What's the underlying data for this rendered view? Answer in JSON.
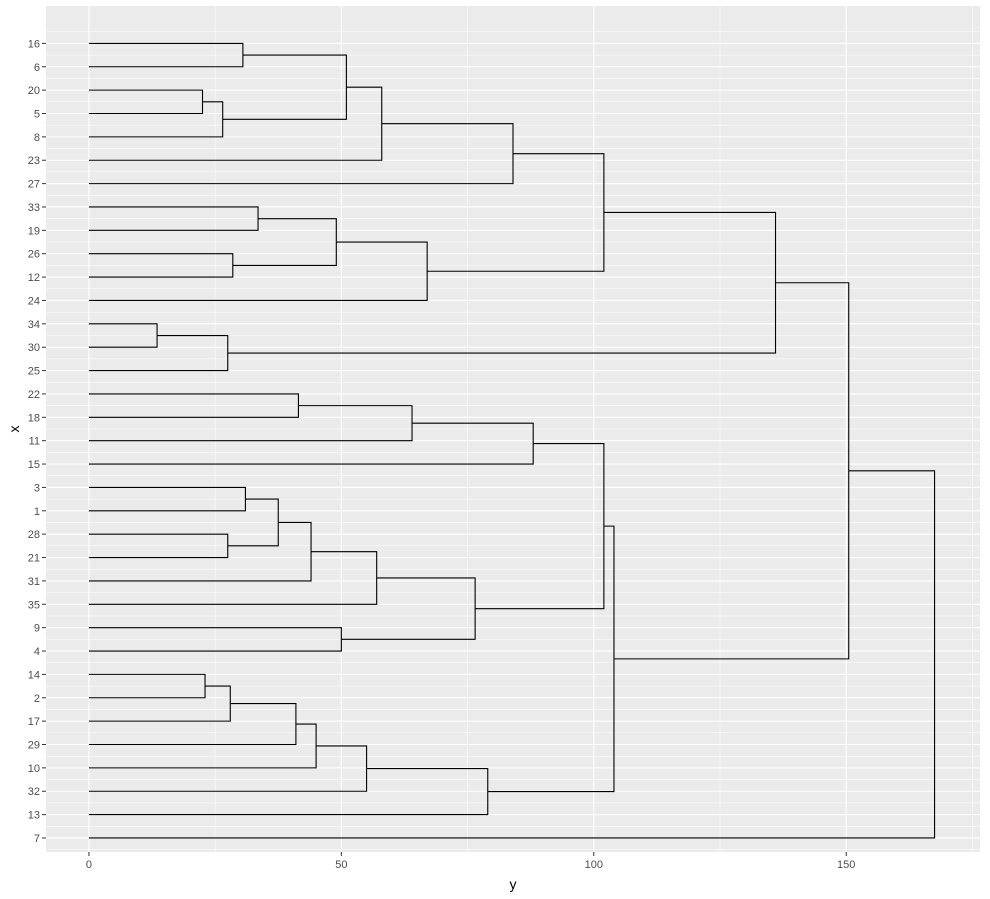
{
  "chart_data": {
    "type": "dendrogram",
    "title": "",
    "xlabel": "y",
    "ylabel": "x",
    "xlim": [
      -8.5,
      176.5
    ],
    "x_ticks": [
      0,
      50,
      100,
      150
    ],
    "grid": true,
    "leaves": [
      "16",
      "6",
      "20",
      "5",
      "8",
      "23",
      "27",
      "33",
      "19",
      "26",
      "12",
      "24",
      "34",
      "30",
      "25",
      "22",
      "18",
      "11",
      "15",
      "3",
      "1",
      "28",
      "21",
      "31",
      "35",
      "9",
      "4",
      "14",
      "2",
      "17",
      "29",
      "10",
      "32",
      "13",
      "7"
    ],
    "merges": [
      {
        "a": "L20",
        "b": "L5",
        "height": 22.5
      },
      {
        "a": "L34",
        "b": "L30",
        "height": 13.5
      },
      {
        "a": "L14",
        "b": "L2",
        "height": 23
      },
      {
        "a": "L28",
        "b": "L21",
        "height": 27.5
      },
      {
        "a": "L26",
        "b": "L12",
        "height": 28.5
      },
      {
        "a": "M1",
        "b": "L8",
        "height": 26.5
      },
      {
        "a": "M2",
        "b": "L25",
        "height": 27.5
      },
      {
        "a": "M3",
        "b": "L17",
        "height": 28
      },
      {
        "a": "L16",
        "b": "L6",
        "height": 30.5
      },
      {
        "a": "L3",
        "b": "L1",
        "height": 31
      },
      {
        "a": "L33",
        "b": "L19",
        "height": 33.5
      },
      {
        "a": "M10",
        "b": "M4",
        "height": 37.5
      },
      {
        "a": "M8",
        "b": "L29",
        "height": 41
      },
      {
        "a": "L22",
        "b": "L18",
        "height": 41.5
      },
      {
        "a": "M12",
        "b": "L31",
        "height": 44
      },
      {
        "a": "M13",
        "b": "L10",
        "height": 45
      },
      {
        "a": "L9",
        "b": "L4",
        "height": 50
      },
      {
        "a": "M9",
        "b": "M6",
        "height": 51
      },
      {
        "a": "M11",
        "b": "M5",
        "height": 49
      },
      {
        "a": "M16",
        "b": "L32",
        "height": 55
      },
      {
        "a": "M15",
        "b": "L35",
        "height": 57
      },
      {
        "a": "M18",
        "b": "L23",
        "height": 58
      },
      {
        "a": "M14",
        "b": "L11",
        "height": 64
      },
      {
        "a": "M19",
        "b": "L24",
        "height": 67
      },
      {
        "a": "M21",
        "b": "M17",
        "height": 76.5
      },
      {
        "a": "M20",
        "b": "L13",
        "height": 79
      },
      {
        "a": "M22",
        "b": "L27",
        "height": 84
      },
      {
        "a": "M23",
        "b": "L15",
        "height": 88
      },
      {
        "a": "M27",
        "b": "M24",
        "height": 102
      },
      {
        "a": "M28",
        "b": "M25",
        "height": 102
      },
      {
        "a": "M30",
        "b": "M26",
        "height": 104
      },
      {
        "a": "M29",
        "b": "M7",
        "height": 136
      },
      {
        "a": "M32",
        "b": "M31",
        "height": 150.5
      },
      {
        "a": "M33",
        "b": "L7",
        "height": 167.5
      }
    ]
  }
}
